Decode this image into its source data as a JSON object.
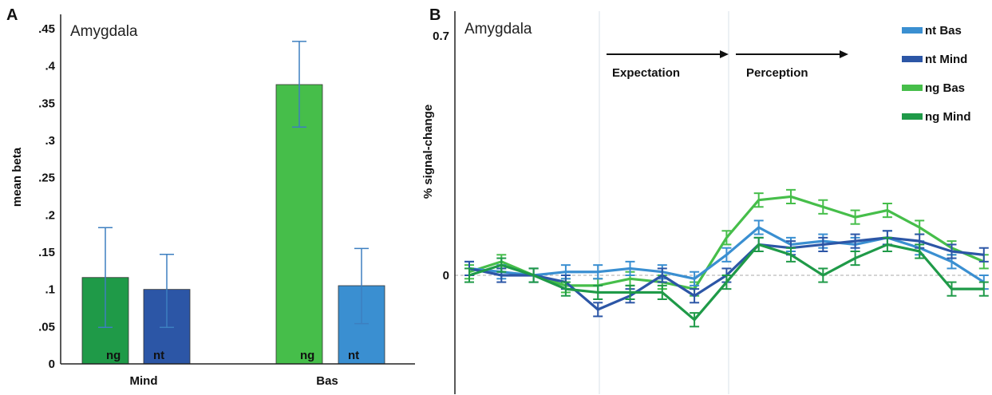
{
  "colors": {
    "ng_mind": "#1f9a48",
    "nt_mind": "#2c56a6",
    "ng_bas": "#46be4a",
    "nt_bas": "#3a8fd1",
    "err_a": "#3d7fc0",
    "axis": "#222222",
    "guide": "#d9e1ea",
    "zero": "#aaaaaa"
  },
  "chart_data": [
    {
      "panel": "A",
      "type": "bar",
      "title": "Amygdala",
      "ylabel": "mean beta",
      "ylim": [
        0,
        0.45
      ],
      "yticks": [
        {
          "v": 0,
          "label": "0"
        },
        {
          "v": 0.05,
          "label": ".05"
        },
        {
          "v": 0.1,
          "label": ".1"
        },
        {
          "v": 0.15,
          "label": ".15"
        },
        {
          "v": 0.2,
          "label": ".2"
        },
        {
          "v": 0.25,
          "label": ".25"
        },
        {
          "v": 0.3,
          "label": ".3"
        },
        {
          "v": 0.35,
          "label": ".35"
        },
        {
          "v": 0.4,
          "label": ".4"
        },
        {
          "v": 0.45,
          "label": ".45"
        }
      ],
      "categories": [
        "Mind",
        "Bas"
      ],
      "bars": [
        {
          "category": "Mind",
          "label": "ng",
          "value": 0.116,
          "err_low": 0.049,
          "err_high": 0.183,
          "color_key": "ng_mind"
        },
        {
          "category": "Mind",
          "label": "nt",
          "value": 0.1,
          "err_low": 0.049,
          "err_high": 0.147,
          "color_key": "nt_mind"
        },
        {
          "category": "Bas",
          "label": "ng",
          "value": 0.375,
          "err_low": 0.318,
          "err_high": 0.433,
          "color_key": "ng_bas"
        },
        {
          "category": "Bas",
          "label": "nt",
          "value": 0.105,
          "err_low": 0.054,
          "err_high": 0.155,
          "color_key": "nt_bas"
        }
      ]
    },
    {
      "panel": "B",
      "type": "line",
      "title": "Amygdala",
      "ylabel": "% signal-change",
      "ylim": [
        -0.3,
        0.7
      ],
      "yticks": [
        {
          "v": 0,
          "label": "0"
        },
        {
          "v": 0.7,
          "label": "0.7"
        }
      ],
      "x": [
        1,
        2,
        3,
        4,
        5,
        6,
        7,
        8,
        9,
        10,
        11,
        12,
        13,
        14,
        15,
        16,
        17
      ],
      "phases": [
        {
          "label": "Expectation"
        },
        {
          "label": "Perception"
        }
      ],
      "err": 0.02,
      "series": [
        {
          "name": "nt Bas",
          "color_key": "nt_bas",
          "values": [
            0.02,
            0.01,
            0.0,
            0.01,
            0.01,
            0.02,
            0.01,
            -0.01,
            0.06,
            0.14,
            0.09,
            0.1,
            0.09,
            0.11,
            0.08,
            0.04,
            -0.02
          ]
        },
        {
          "name": "nt Mind",
          "color_key": "nt_mind",
          "values": [
            0.02,
            0.0,
            0.0,
            -0.02,
            -0.1,
            -0.06,
            0.0,
            -0.06,
            0.0,
            0.09,
            0.08,
            0.09,
            0.1,
            0.11,
            0.1,
            0.07,
            0.06
          ]
        },
        {
          "name": "ng Bas",
          "color_key": "ng_bas",
          "values": [
            0.01,
            0.04,
            0.0,
            -0.03,
            -0.03,
            -0.01,
            -0.02,
            -0.04,
            0.11,
            0.22,
            0.23,
            0.2,
            0.17,
            0.19,
            0.14,
            0.08,
            0.04
          ]
        },
        {
          "name": "ng Mind",
          "color_key": "ng_mind",
          "values": [
            0.0,
            0.03,
            0.0,
            -0.04,
            -0.05,
            -0.05,
            -0.05,
            -0.13,
            -0.02,
            0.09,
            0.06,
            0.0,
            0.05,
            0.09,
            0.07,
            -0.04,
            -0.04
          ]
        }
      ]
    }
  ]
}
